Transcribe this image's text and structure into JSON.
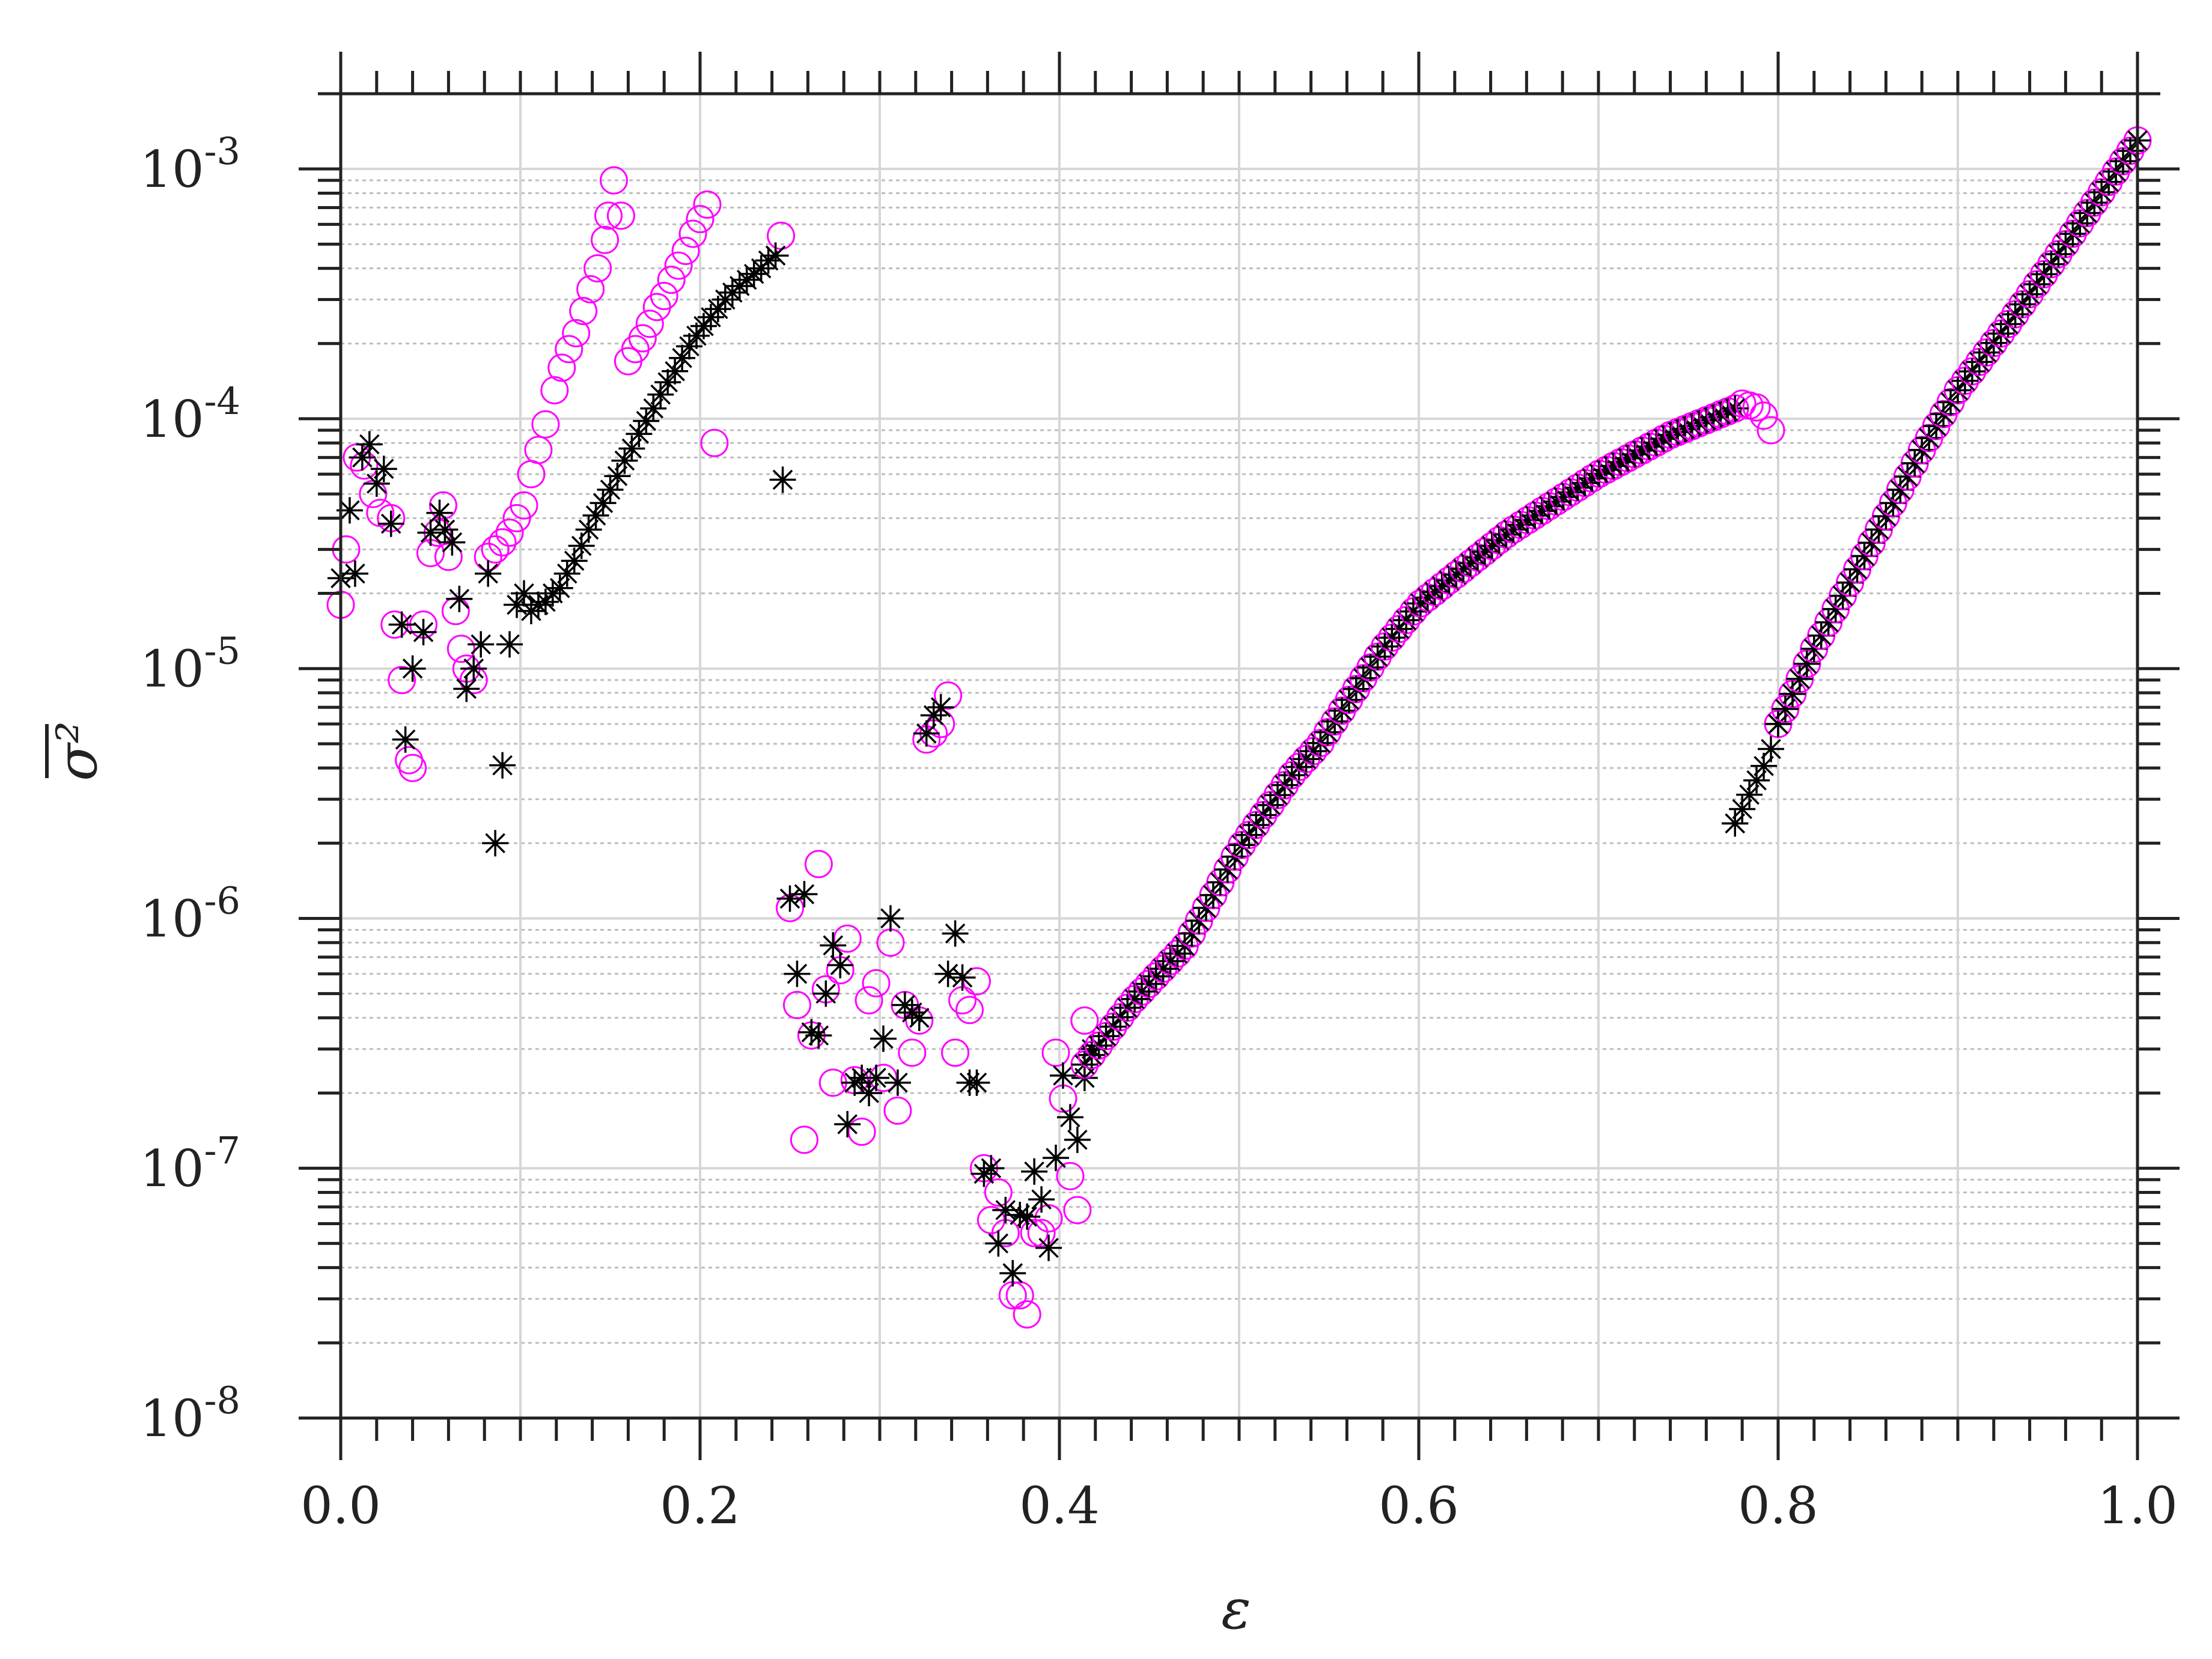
{
  "chart_data": {
    "type": "scatter",
    "title": "",
    "xlabel": "ε",
    "ylabel": "σ²",
    "xlim": [
      0,
      1
    ],
    "ylim": [
      1e-08,
      0.002
    ],
    "yscale": "log",
    "grid": true,
    "legend": "none",
    "x_ticks": [
      "0.0",
      "0.2",
      "0.4",
      "0.6",
      "0.8",
      "1.0"
    ],
    "y_ticks": [
      {
        "base": "10",
        "exp": "-3",
        "value": 0.001
      },
      {
        "base": "10",
        "exp": "-4",
        "value": 0.0001
      },
      {
        "base": "10",
        "exp": "-5",
        "value": 1e-05
      },
      {
        "base": "10",
        "exp": "-6",
        "value": 1e-06
      },
      {
        "base": "10",
        "exp": "-7",
        "value": 1e-07
      },
      {
        "base": "10",
        "exp": "-8",
        "value": 1e-08
      }
    ],
    "series": [
      {
        "marker": "circle",
        "color": "#ff00ff",
        "points": [
          [
            0.0,
            1.8e-05
          ],
          [
            0.003,
            3e-05
          ],
          [
            0.009,
            7e-05
          ],
          [
            0.013,
            6.5e-05
          ],
          [
            0.018,
            5e-05
          ],
          [
            0.022,
            4.2e-05
          ],
          [
            0.028,
            4e-05
          ],
          [
            0.03,
            1.5e-05
          ],
          [
            0.034,
            9e-06
          ],
          [
            0.038,
            4.3e-06
          ],
          [
            0.04,
            4e-06
          ],
          [
            0.046,
            1.5e-05
          ],
          [
            0.05,
            2.9e-05
          ],
          [
            0.054,
            3.5e-05
          ],
          [
            0.057,
            4.5e-05
          ],
          [
            0.06,
            2.8e-05
          ],
          [
            0.064,
            1.7e-05
          ],
          [
            0.067,
            1.2e-05
          ],
          [
            0.07,
            1e-05
          ],
          [
            0.074,
            9e-06
          ],
          [
            0.082,
            2.8e-05
          ],
          [
            0.086,
            3e-05
          ],
          [
            0.09,
            3.2e-05
          ],
          [
            0.094,
            3.5e-05
          ],
          [
            0.098,
            4e-05
          ],
          [
            0.102,
            4.5e-05
          ],
          [
            0.106,
            6e-05
          ],
          [
            0.11,
            7.5e-05
          ],
          [
            0.114,
            9.5e-05
          ],
          [
            0.119,
            0.00013
          ],
          [
            0.123,
            0.00016
          ],
          [
            0.127,
            0.00019
          ],
          [
            0.131,
            0.00022
          ],
          [
            0.135,
            0.00027
          ],
          [
            0.139,
            0.00033
          ],
          [
            0.143,
            0.0004
          ],
          [
            0.147,
            0.00052
          ],
          [
            0.149,
            0.00065
          ],
          [
            0.152,
            0.0009
          ],
          [
            0.156,
            0.00065
          ],
          [
            0.16,
            0.00017
          ],
          [
            0.164,
            0.00019
          ],
          [
            0.168,
            0.00021
          ],
          [
            0.172,
            0.00024
          ],
          [
            0.176,
            0.00028
          ],
          [
            0.18,
            0.00031
          ],
          [
            0.184,
            0.00036
          ],
          [
            0.188,
            0.00041
          ],
          [
            0.192,
            0.00047
          ],
          [
            0.196,
            0.00055
          ],
          [
            0.2,
            0.00063
          ],
          [
            0.204,
            0.00072
          ],
          [
            0.208,
            8e-05
          ],
          [
            0.245,
            0.00054
          ],
          [
            0.25,
            1.1e-06
          ],
          [
            0.254,
            4.5e-07
          ],
          [
            0.258,
            1.3e-07
          ],
          [
            0.262,
            3.4e-07
          ],
          [
            0.266,
            1.65e-06
          ],
          [
            0.27,
            5.2e-07
          ],
          [
            0.274,
            2.2e-07
          ],
          [
            0.278,
            6.2e-07
          ],
          [
            0.282,
            8.3e-07
          ],
          [
            0.286,
            2.25e-07
          ],
          [
            0.29,
            1.4e-07
          ],
          [
            0.294,
            4.7e-07
          ],
          [
            0.298,
            5.5e-07
          ],
          [
            0.302,
            2.3e-07
          ],
          [
            0.306,
            8e-07
          ],
          [
            0.31,
            1.7e-07
          ],
          [
            0.314,
            4.5e-07
          ],
          [
            0.318,
            2.9e-07
          ],
          [
            0.322,
            3.9e-07
          ],
          [
            0.326,
            5.2e-06
          ],
          [
            0.33,
            5.5e-06
          ],
          [
            0.334,
            6e-06
          ],
          [
            0.338,
            7.8e-06
          ],
          [
            0.342,
            2.9e-07
          ],
          [
            0.346,
            4.7e-07
          ],
          [
            0.35,
            4.3e-07
          ],
          [
            0.354,
            5.6e-07
          ],
          [
            0.358,
            1e-07
          ],
          [
            0.362,
            6.2e-08
          ],
          [
            0.366,
            8e-08
          ],
          [
            0.37,
            5.5e-08
          ],
          [
            0.374,
            3.1e-08
          ],
          [
            0.378,
            3.1e-08
          ],
          [
            0.382,
            2.6e-08
          ],
          [
            0.386,
            5.5e-08
          ],
          [
            0.39,
            5.5e-08
          ],
          [
            0.394,
            6.3e-08
          ],
          [
            0.398,
            2.9e-07
          ],
          [
            0.402,
            1.9e-07
          ],
          [
            0.406,
            9.3e-08
          ],
          [
            0.41,
            6.8e-08
          ],
          [
            0.414,
            3.9e-07
          ]
        ]
      },
      {
        "marker": "asterisk",
        "color": "#000000",
        "points": [
          [
            0.0,
            2.3e-05
          ],
          [
            0.005,
            4.3e-05
          ],
          [
            0.008,
            2.4e-05
          ],
          [
            0.012,
            7e-05
          ],
          [
            0.016,
            7.9e-05
          ],
          [
            0.02,
            5.5e-05
          ],
          [
            0.024,
            6.3e-05
          ],
          [
            0.028,
            3.8e-05
          ],
          [
            0.034,
            1.5e-05
          ],
          [
            0.036,
            5.2e-06
          ],
          [
            0.04,
            1e-05
          ],
          [
            0.046,
            1.4e-05
          ],
          [
            0.05,
            3.5e-05
          ],
          [
            0.055,
            4.2e-05
          ],
          [
            0.058,
            3.6e-05
          ],
          [
            0.062,
            3.2e-05
          ],
          [
            0.066,
            1.9e-05
          ],
          [
            0.07,
            8.3e-06
          ],
          [
            0.074,
            1e-05
          ],
          [
            0.078,
            1.25e-05
          ],
          [
            0.082,
            2.4e-05
          ],
          [
            0.086,
            2e-06
          ],
          [
            0.09,
            4.1e-06
          ],
          [
            0.094,
            1.25e-05
          ],
          [
            0.098,
            1.8e-05
          ],
          [
            0.102,
            2e-05
          ],
          [
            0.106,
            1.7e-05
          ],
          [
            0.11,
            1.8e-05
          ],
          [
            0.114,
            1.85e-05
          ],
          [
            0.118,
            2e-05
          ],
          [
            0.122,
            2.1e-05
          ],
          [
            0.126,
            2.4e-05
          ],
          [
            0.13,
            2.7e-05
          ],
          [
            0.134,
            3.1e-05
          ],
          [
            0.138,
            3.6e-05
          ],
          [
            0.142,
            4.1e-05
          ],
          [
            0.146,
            4.6e-05
          ],
          [
            0.15,
            5.2e-05
          ],
          [
            0.154,
            5.9e-05
          ],
          [
            0.158,
            6.8e-05
          ],
          [
            0.162,
            7.6e-05
          ],
          [
            0.166,
            8.7e-05
          ],
          [
            0.17,
            9.8e-05
          ],
          [
            0.174,
            0.00011
          ],
          [
            0.178,
            0.000125
          ],
          [
            0.182,
            0.00014
          ],
          [
            0.186,
            0.000155
          ],
          [
            0.19,
            0.000175
          ],
          [
            0.194,
            0.000195
          ],
          [
            0.198,
            0.000215
          ],
          [
            0.202,
            0.000235
          ],
          [
            0.206,
            0.000255
          ],
          [
            0.21,
            0.000275
          ],
          [
            0.214,
            0.0003
          ],
          [
            0.218,
            0.00032
          ],
          [
            0.222,
            0.00034
          ],
          [
            0.226,
            0.00036
          ],
          [
            0.23,
            0.00038
          ],
          [
            0.234,
            0.0004
          ],
          [
            0.238,
            0.00043
          ],
          [
            0.242,
            0.00045
          ],
          [
            0.246,
            5.7e-05
          ],
          [
            0.25,
            1.2e-06
          ],
          [
            0.254,
            6e-07
          ],
          [
            0.258,
            1.25e-06
          ],
          [
            0.262,
            3.5e-07
          ],
          [
            0.266,
            3.4e-07
          ],
          [
            0.27,
            5e-07
          ],
          [
            0.274,
            7.8e-07
          ],
          [
            0.278,
            6.5e-07
          ],
          [
            0.282,
            1.5e-07
          ],
          [
            0.286,
            2.2e-07
          ],
          [
            0.29,
            2.3e-07
          ],
          [
            0.294,
            2e-07
          ],
          [
            0.298,
            2.3e-07
          ],
          [
            0.302,
            3.3e-07
          ],
          [
            0.306,
            1e-06
          ],
          [
            0.31,
            2.2e-07
          ],
          [
            0.314,
            4.5e-07
          ],
          [
            0.318,
            4.2e-07
          ],
          [
            0.322,
            4e-07
          ],
          [
            0.326,
            5.5e-06
          ],
          [
            0.33,
            6.5e-06
          ],
          [
            0.334,
            7e-06
          ],
          [
            0.338,
            6e-07
          ],
          [
            0.342,
            8.7e-07
          ],
          [
            0.346,
            5.8e-07
          ],
          [
            0.35,
            2.2e-07
          ],
          [
            0.354,
            2.2e-07
          ],
          [
            0.358,
            9.5e-08
          ],
          [
            0.362,
            1e-07
          ],
          [
            0.366,
            5e-08
          ],
          [
            0.37,
            6.8e-08
          ],
          [
            0.374,
            3.8e-08
          ],
          [
            0.378,
            6.5e-08
          ],
          [
            0.382,
            6.4e-08
          ],
          [
            0.386,
            9.7e-08
          ],
          [
            0.39,
            7.5e-08
          ],
          [
            0.394,
            4.8e-08
          ],
          [
            0.398,
            1.1e-07
          ],
          [
            0.402,
            2.35e-07
          ],
          [
            0.406,
            1.6e-07
          ],
          [
            0.41,
            1.3e-07
          ],
          [
            0.414,
            2.3e-07
          ],
          [
            0.418,
            3e-07
          ],
          [
            0.776,
            2.4e-06
          ]
        ]
      }
    ],
    "curve_series": [
      {
        "name": "",
        "marker": "circle+asterisk",
        "colors": [
          "#ff00ff",
          "#000000"
        ],
        "step": 0.004,
        "knots": [
          [
            0.414,
            2.6e-07
          ],
          [
            0.44,
            4.6e-07
          ],
          [
            0.47,
            7.8e-07
          ],
          [
            0.5,
            1.9e-06
          ],
          [
            0.53,
            3.8e-06
          ],
          [
            0.545,
            5e-06
          ],
          [
            0.58,
            1.2e-05
          ],
          [
            0.6,
            1.8e-05
          ],
          [
            0.65,
            3.5e-05
          ],
          [
            0.7,
            6e-05
          ],
          [
            0.74,
            8.6e-05
          ],
          [
            0.776,
            0.00011
          ]
        ]
      },
      {
        "name": "",
        "marker": "circle",
        "colors": [
          "#ff00ff"
        ],
        "step": 0.004,
        "knots": [
          [
            0.78,
            0.000115
          ],
          [
            0.79,
            0.00011
          ],
          [
            0.796,
            9e-05
          ]
        ]
      },
      {
        "name": "",
        "marker": "asterisk",
        "colors": [
          "#000000"
        ],
        "step": 0.004,
        "knots": [
          [
            0.776,
            2.4e-06
          ],
          [
            0.795,
            4.5e-06
          ],
          [
            0.8,
            6e-06
          ]
        ]
      },
      {
        "name": "",
        "marker": "circle+asterisk",
        "colors": [
          "#ff00ff",
          "#000000"
        ],
        "step": 0.004,
        "knots": [
          [
            0.8,
            6e-06
          ],
          [
            0.82,
            1.2e-05
          ],
          [
            0.85,
            3e-05
          ],
          [
            0.88,
            7.5e-05
          ],
          [
            0.9,
            0.00013
          ],
          [
            0.93,
            0.00025
          ],
          [
            0.96,
            0.0005
          ],
          [
            1.0,
            0.0013
          ]
        ]
      }
    ]
  }
}
